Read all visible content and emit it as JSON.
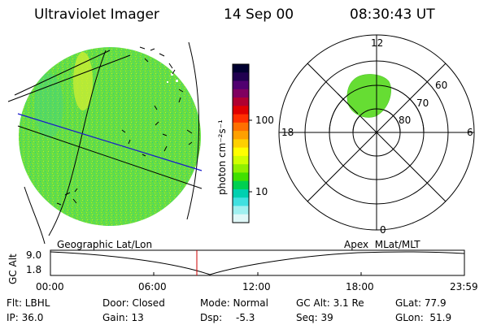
{
  "header": {
    "instrument": "Ultraviolet Imager",
    "date": "14 Sep 00",
    "time": "08:30:43 UT"
  },
  "colorbar": {
    "unit_label": "photon cm⁻²s⁻¹",
    "ticks": [
      "100",
      "10"
    ],
    "colors": [
      "#000030",
      "#200050",
      "#500070",
      "#800060",
      "#b00030",
      "#e00000",
      "#ff3000",
      "#ff7000",
      "#ffa000",
      "#ffd000",
      "#ffff00",
      "#d0ff00",
      "#90f000",
      "#40e000",
      "#00d050",
      "#00d0b0",
      "#40e0e0",
      "#a0f0f0",
      "#e0f8f8"
    ]
  },
  "polar": {
    "mlt_labels": [
      "12",
      "18",
      "6",
      "0"
    ],
    "lat_labels": [
      "60",
      "70",
      "80"
    ],
    "oval_color": "#66dd33"
  },
  "image": {
    "earth_color": "#66dd44"
  },
  "alt_plot": {
    "left_title": "Geographic Lat/Lon",
    "right_title": "Apex  MLat/MLT",
    "ylabel": "GC Alt",
    "yticks": [
      "9.0",
      "1.8"
    ],
    "xticks": [
      "00:00",
      "06:00",
      "12:00",
      "18:00",
      "23:59"
    ],
    "marker_color": "#cc0000"
  },
  "info": {
    "filter": "Flt: LBHL",
    "ip": "IP: 36.0",
    "door": "Door: Closed",
    "gain": "Gain: 13",
    "mode": "Mode: Normal",
    "dsp_label": "Dsp:",
    "dsp_value": "-5.3",
    "gcalt": "GC Alt: 3.1 Re",
    "seq": "Seq: 39",
    "glat": "GLat: 77.9",
    "glon": "GLon:  51.9"
  }
}
